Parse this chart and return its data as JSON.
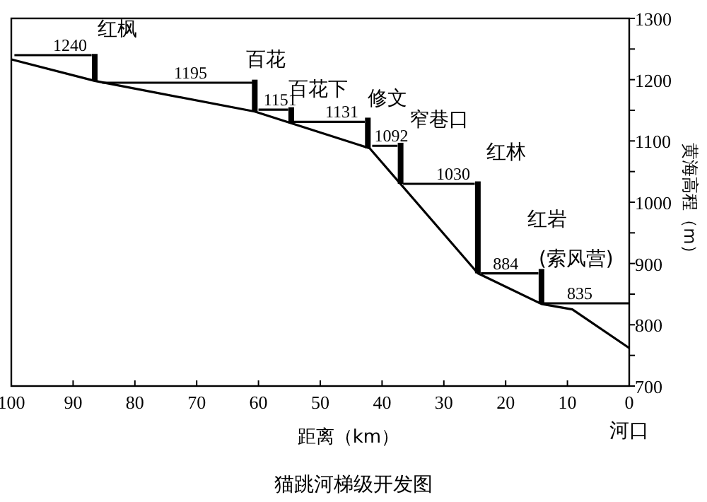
{
  "chart_data": {
    "type": "line",
    "title": "猫跳河梯级开发图",
    "xlabel": "距离（km）",
    "ylabel": "黄海高程（m）",
    "xlim": [
      100,
      0
    ],
    "xticks": [
      100,
      90,
      80,
      70,
      60,
      50,
      40,
      30,
      20,
      10,
      0
    ],
    "ylim": [
      700,
      1300
    ],
    "yticks": [
      700,
      {
        "value": 750,
        "label": null
      },
      800,
      {
        "value": 850,
        "label": null
      },
      900,
      {
        "value": 950,
        "label": null
      },
      1000,
      {
        "value": 1050,
        "label": null
      },
      1100,
      {
        "value": 1150,
        "label": null
      },
      1200,
      {
        "value": 1250,
        "label": null
      },
      1300
    ],
    "series": [
      {
        "color": "#000000",
        "x": [
          100,
          86.5,
          60.6,
          54.7,
          42,
          24.5,
          14.2,
          9.2,
          0
        ],
        "values": [
          1233,
          1198,
          1148,
          1129,
          1088,
          884,
          834,
          825,
          762
        ]
      },
      {
        "color": "#000000",
        "x": [
          99.5,
          87
        ],
        "values": [
          1240,
          1240
        ]
      },
      {
        "color": "#000000",
        "x": [
          85.3,
          61
        ],
        "values": [
          1195,
          1195
        ]
      },
      {
        "color": "#000000",
        "x": [
          60,
          55.2
        ],
        "values": [
          1151,
          1151
        ]
      },
      {
        "color": "#000000",
        "x": [
          54.5,
          42.8
        ],
        "values": [
          1131,
          1131
        ]
      },
      {
        "color": "#000000",
        "x": [
          41.6,
          37.5
        ],
        "values": [
          1092,
          1092
        ]
      },
      {
        "color": "#000000",
        "x": [
          36.6,
          25
        ],
        "values": [
          1030,
          1030
        ]
      },
      {
        "color": "#000000",
        "x": [
          24,
          14.7
        ],
        "values": [
          884,
          884
        ]
      },
      {
        "color": "#000000",
        "x": [
          14.2,
          0
        ],
        "values": [
          835,
          835
        ]
      },
      {
        "type": "bar",
        "color": "#000000",
        "x": [
          86.5,
          60.6,
          54.7,
          42.3,
          37,
          24.5,
          14.2
        ],
        "base": [
          1198,
          1148,
          1129,
          1088,
          1030,
          884,
          834
        ],
        "values": [
          44,
          52,
          26,
          50,
          67,
          150,
          57
        ]
      }
    ],
    "annotations": [
      {
        "text": "1240",
        "x": 90.5,
        "y": 1240
      },
      {
        "text": "1195",
        "x": 71,
        "y": 1195
      },
      {
        "text": "1151",
        "x": 56.5,
        "y": 1151
      },
      {
        "text": "1131",
        "x": 46.5,
        "y": 1131
      },
      {
        "text": "1092",
        "x": 38.5,
        "y": 1092
      },
      {
        "text": "1030",
        "x": 28.5,
        "y": 1030
      },
      {
        "text": "884",
        "x": 20,
        "y": 884
      },
      {
        "text": "835",
        "x": 8,
        "y": 835
      },
      {
        "text": "红枫",
        "x": 86.5,
        "y": 1240
      },
      {
        "text": "百花",
        "x": 60.6,
        "y": 1195
      },
      {
        "text": "百花下",
        "x": 54.7,
        "y": 1151
      },
      {
        "text": "修文",
        "x": 42.3,
        "y": 1131
      },
      {
        "text": "窄巷口",
        "x": 37,
        "y": 1092
      },
      {
        "text": "红林",
        "x": 24.5,
        "y": 1030
      },
      {
        "text": "红岩",
        "x": 14.2,
        "y": 884
      },
      {
        "text": "(索风营)",
        "x": 14.2,
        "y": 884
      },
      "河口"
    ]
  }
}
